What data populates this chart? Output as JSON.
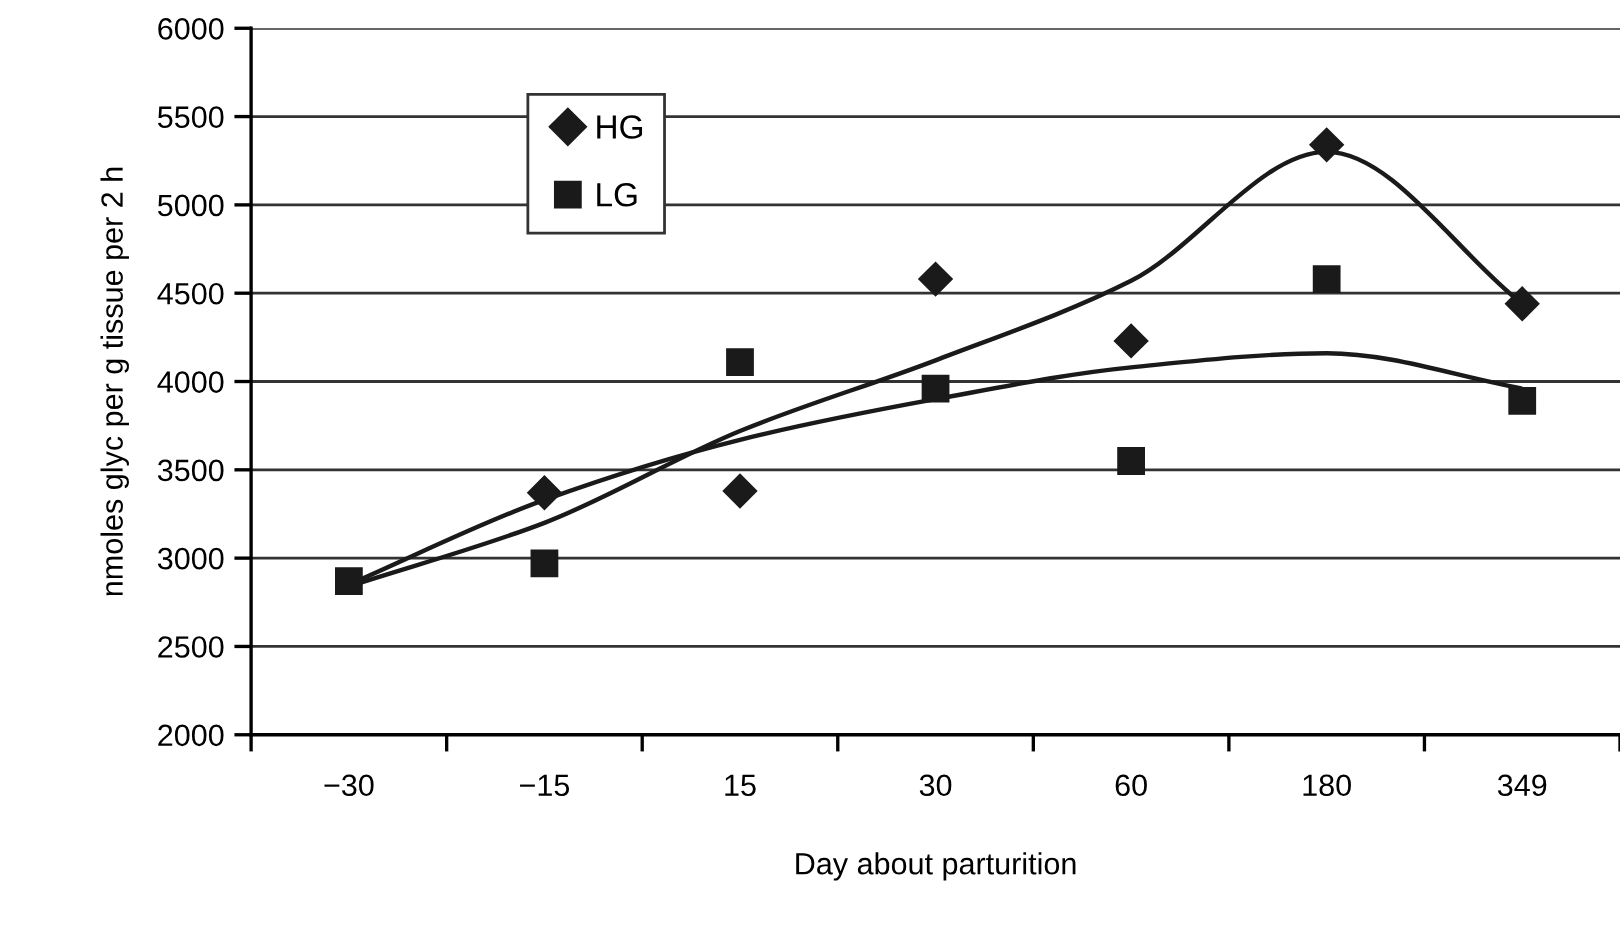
{
  "chart_data": {
    "type": "scatter",
    "xlabel": "Day about parturition",
    "ylabel": "nmoles glyc per g tissue per 2 h",
    "categories": [
      "−30",
      "−15",
      "15",
      "30",
      "60",
      "180",
      "349"
    ],
    "series": [
      {
        "name": "HG",
        "color": "#1a1a1a",
        "marker": "diamond",
        "values": [
          null,
          3370,
          3380,
          4580,
          4230,
          5340,
          4440
        ]
      },
      {
        "name": "LG",
        "color": "#1a1a1a",
        "marker": "square",
        "values": [
          2870,
          2970,
          4110,
          3960,
          3550,
          4580,
          3890
        ]
      },
      {
        "type": "line",
        "color": "#1a1a1a",
        "marker": "none",
        "values": [
          2840,
          3200,
          3720,
          4120,
          4570,
          5300,
          4440
        ]
      },
      {
        "type": "line",
        "color": "#1a1a1a",
        "marker": "none",
        "values": [
          2850,
          3330,
          3670,
          3900,
          4080,
          4160,
          3960
        ]
      }
    ],
    "ylim": [
      2000,
      6000
    ],
    "yticks": [
      2000,
      2500,
      3000,
      3500,
      4000,
      4500,
      5000,
      5500,
      6000
    ],
    "grid": "y",
    "legend": "top left"
  }
}
